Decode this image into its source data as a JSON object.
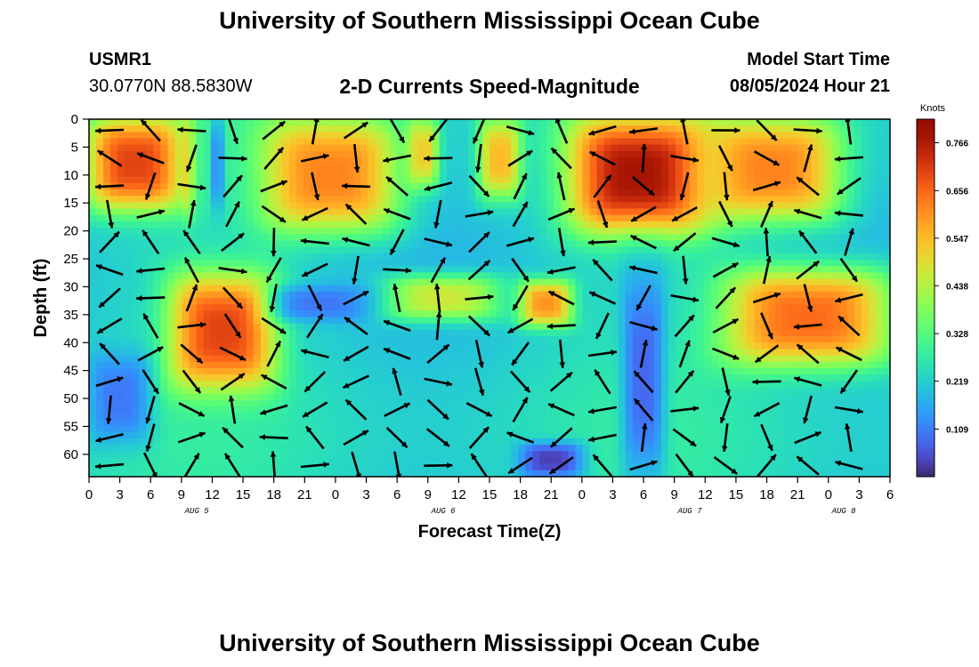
{
  "header": {
    "title": "University of Southern Mississippi Ocean Cube",
    "station_id": "USMR1",
    "station_coords": "30.0770N  88.5830W",
    "subtitle": "2-D Currents Speed-Magnitude",
    "model_label": "Model Start Time",
    "model_time": "08/05/2024 Hour 21"
  },
  "footer": {
    "title": "University of Southern Mississippi Ocean Cube"
  },
  "chart_data": {
    "type": "heatmap",
    "title": "2-D Currents Speed-Magnitude",
    "xlabel": "Forecast Time(Z)",
    "ylabel": "Depth (ft)",
    "x_ticks": [
      "0",
      "3",
      "6",
      "9",
      "12",
      "15",
      "18",
      "21",
      "0",
      "3",
      "6",
      "9",
      "12",
      "15",
      "18",
      "21",
      "0",
      "3",
      "6",
      "9",
      "12",
      "15",
      "18",
      "21",
      "0",
      "3",
      "6"
    ],
    "x_range_hours_from_aug5_00Z": [
      0,
      78
    ],
    "date_labels": [
      {
        "label": "AUG 5",
        "at_tick": 3.5
      },
      {
        "label": "AUG 6",
        "at_tick": 11.5
      },
      {
        "label": "AUG 7",
        "at_tick": 19.5
      },
      {
        "label": "AUG 8",
        "at_tick": 24.5
      }
    ],
    "y_ticks": [
      0,
      5,
      10,
      15,
      20,
      25,
      30,
      35,
      40,
      45,
      50,
      55,
      60
    ],
    "ylim": [
      0,
      64
    ],
    "y_inverted": true,
    "colorbar": {
      "unit": "Knots",
      "min": 0.0,
      "max": 0.82,
      "ticks": [
        "0.766",
        "0.656",
        "0.547",
        "0.438",
        "0.328",
        "0.219",
        "0.109"
      ],
      "tick_values": [
        0.766,
        0.656,
        0.547,
        0.438,
        0.328,
        0.219,
        0.109
      ]
    },
    "speed_features_knots": [
      {
        "region": "hours 0-9, depth 0-16 ft",
        "speed": 0.7
      },
      {
        "region": "hours 9-10, depth 0-16 ft",
        "speed": 0.5
      },
      {
        "region": "hours 12-13, depth 0-16 ft",
        "speed": 0.12
      },
      {
        "region": "hours 17-30, depth 0-20 ft",
        "speed": 0.62
      },
      {
        "region": "hours 31-34, depth 0-12 ft",
        "speed": 0.52
      },
      {
        "region": "hours 38-42, depth 0-14 ft",
        "speed": 0.55
      },
      {
        "region": "hours 47-60, depth 0-20 ft",
        "speed": 0.78
      },
      {
        "region": "hours 60-73, depth 0-18 ft",
        "speed": 0.62
      },
      {
        "region": "hours 8-18, depth 28-48 ft",
        "speed": 0.7
      },
      {
        "region": "hours 29-40, depth 28-36 ft",
        "speed": 0.47
      },
      {
        "region": "hours 42-47, depth 29-37 ft",
        "speed": 0.6
      },
      {
        "region": "hours 62-78, depth 27-44 ft",
        "speed": 0.65
      },
      {
        "region": "hours 52-56, depth 28-64 ft",
        "speed": 0.08
      },
      {
        "region": "hours 42-48, depth 58-64 ft",
        "speed": 0.03
      },
      {
        "region": "hours 0-6, depth 42-58 ft",
        "speed": 0.1
      },
      {
        "region": "hours 18-27, depth 30-36 ft",
        "speed": 0.1
      }
    ],
    "grid": false,
    "legend": "right colorbar"
  }
}
